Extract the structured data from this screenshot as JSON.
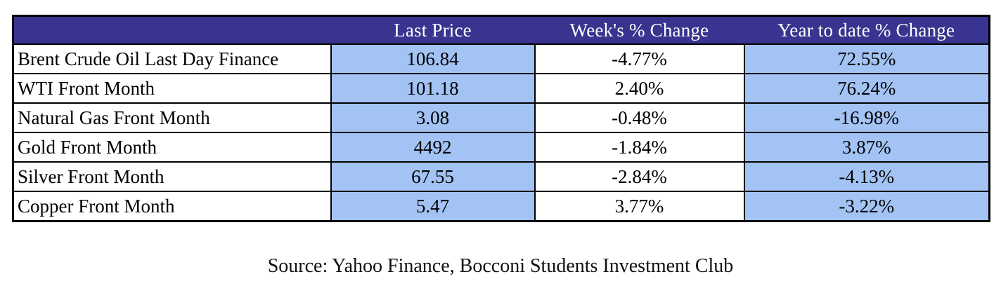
{
  "chart_data": {
    "type": "table",
    "columns": [
      "",
      "Last Price",
      "Week's % Change",
      "Year to date % Change"
    ],
    "rows": [
      [
        "Brent Crude Oil Last Day Finance",
        "106.84",
        "-4.77%",
        "72.55%"
      ],
      [
        "WTI Front Month",
        "101.18",
        "2.40%",
        "76.24%"
      ],
      [
        "Natural Gas Front Month",
        "3.08",
        "-0.48%",
        "-16.98%"
      ],
      [
        "Gold Front Month",
        "4492",
        "-1.84%",
        "3.87%"
      ],
      [
        "Silver Front Month",
        "67.55",
        "-2.84%",
        "-4.13%"
      ],
      [
        "Copper Front Month",
        "5.47",
        "3.77%",
        "-3.22%"
      ]
    ],
    "layout_hints": {
      "header_fill": "solid indigo band, no internal vertical borders",
      "highlighted_columns": [
        "Last Price",
        "Year to date % Change"
      ],
      "grid": "black 2px cell borders, 3px outer border"
    }
  },
  "source_caption": "Source: Yahoo Finance, Bocconi Students Investment Club",
  "colors": {
    "header_bg": "#39348F",
    "header_text": "#FFFFFF",
    "highlight_cell_bg": "#A2C3F3",
    "plain_cell_bg": "#FFFFFF",
    "border": "#000000",
    "body_text": "#000000"
  }
}
